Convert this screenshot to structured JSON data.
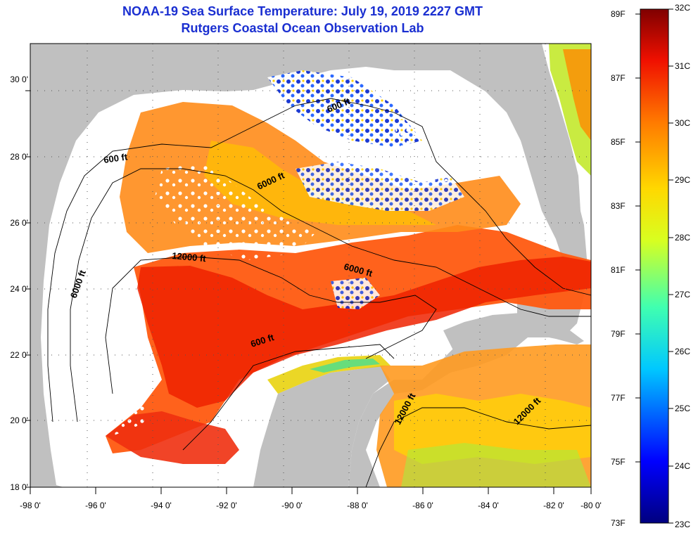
{
  "title": {
    "line1": "NOAA-19 Sea Surface Temperature:  July 19, 2019 2227 GMT",
    "line2": "Rutgers Coastal Ocean Observation Lab"
  },
  "map": {
    "lat_ticks": [
      "18 0'",
      "20 0'",
      "22 0'",
      "24 0'",
      "26 0'",
      "28 0'",
      "30 0'"
    ],
    "lon_ticks": [
      "-98 0'",
      "-96 0'",
      "-94 0'",
      "-92 0'",
      "-90 0'",
      "-88 0'",
      "-86 0'",
      "-84 0'",
      "-82 0'",
      "-80 0'"
    ],
    "contour_labels": [
      "600 ft",
      "600 ft",
      "600 ft",
      "6000 ft",
      "6000 ft",
      "6000 ft",
      "12000 ft",
      "12000 ft",
      "12000 ft"
    ],
    "colors": {
      "land": "#c0c0c0",
      "no_data": "#ffffff",
      "title": "#1a2fd1"
    }
  },
  "colorbar": {
    "fahrenheit": [
      "89F",
      "87F",
      "85F",
      "83F",
      "81F",
      "79F",
      "77F",
      "75F",
      "73F"
    ],
    "celsius": [
      "32C",
      "31C",
      "30C",
      "29C",
      "28C",
      "27C",
      "26C",
      "25C",
      "24C",
      "23C"
    ]
  }
}
